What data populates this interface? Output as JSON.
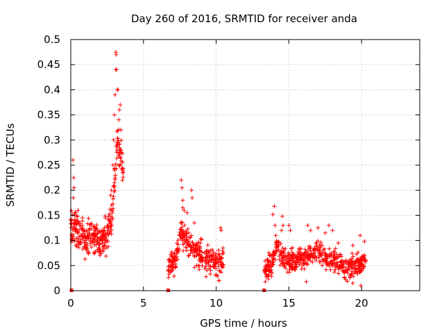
{
  "chart_data": {
    "type": "scatter",
    "title": "Day 260 of 2016, SRMTID for receiver anda",
    "xlabel": "GPS time / hours",
    "ylabel": "SRMTID / TECUs",
    "xlim": [
      0,
      24
    ],
    "ylim": [
      0,
      0.5
    ],
    "grid": true,
    "x_ticks": [
      0,
      5,
      10,
      15,
      20
    ],
    "x_tick_labels": [
      "0",
      "5",
      "10",
      "15",
      "20"
    ],
    "y_ticks": [
      0,
      0.05,
      0.1,
      0.15,
      0.2,
      0.25,
      0.3,
      0.35,
      0.4,
      0.45,
      0.5
    ],
    "y_tick_labels": [
      "0",
      "0.05",
      "0.1",
      "0.15",
      "0.2",
      "0.25",
      "0.3",
      "0.35",
      "0.4",
      "0.45",
      "0.5"
    ],
    "series": [
      {
        "name": "SRMTID",
        "color": "#ff0000",
        "marker": "plus",
        "segments": [
          {
            "start": 0.0,
            "end": 3.6,
            "baseline": [
              [
                0,
                0.13
              ],
              [
                0.5,
                0.12
              ],
              [
                1.0,
                0.1
              ],
              [
                1.5,
                0.11
              ],
              [
                2.0,
                0.1
              ],
              [
                2.5,
                0.11
              ],
              [
                2.8,
                0.14
              ],
              [
                3.0,
                0.22
              ],
              [
                3.2,
                0.3
              ],
              [
                3.4,
                0.28
              ],
              [
                3.6,
                0.24
              ]
            ],
            "spread": 0.03,
            "count": 320
          },
          {
            "start": 6.7,
            "end": 10.5,
            "baseline": [
              [
                6.7,
                0.05
              ],
              [
                7.2,
                0.06
              ],
              [
                7.6,
                0.12
              ],
              [
                8.0,
                0.1
              ],
              [
                8.5,
                0.08
              ],
              [
                9.0,
                0.07
              ],
              [
                9.5,
                0.06
              ],
              [
                10.0,
                0.05
              ],
              [
                10.5,
                0.06
              ]
            ],
            "spread": 0.025,
            "count": 300
          },
          {
            "start": 13.3,
            "end": 20.3,
            "baseline": [
              [
                13.3,
                0.04
              ],
              [
                13.8,
                0.05
              ],
              [
                14.1,
                0.09
              ],
              [
                14.5,
                0.07
              ],
              [
                15.0,
                0.06
              ],
              [
                15.5,
                0.06
              ],
              [
                16.0,
                0.065
              ],
              [
                16.5,
                0.07
              ],
              [
                17.0,
                0.08
              ],
              [
                17.5,
                0.07
              ],
              [
                18.0,
                0.06
              ],
              [
                18.5,
                0.05
              ],
              [
                19.0,
                0.045
              ],
              [
                19.5,
                0.05
              ],
              [
                20.0,
                0.055
              ],
              [
                20.3,
                0.06
              ]
            ],
            "spread": 0.02,
            "count": 520
          }
        ],
        "points": [
          [
            0.15,
            0.26
          ],
          [
            0.2,
            0.225
          ],
          [
            0.22,
            0.205
          ],
          [
            0.18,
            0.185
          ],
          [
            0.3,
            0.155
          ],
          [
            0.5,
            0.16
          ],
          [
            0.8,
            0.145
          ],
          [
            2.75,
            0.19
          ],
          [
            2.8,
            0.2
          ],
          [
            2.9,
            0.25
          ],
          [
            2.95,
            0.3
          ],
          [
            3.0,
            0.35
          ],
          [
            3.05,
            0.39
          ],
          [
            3.1,
            0.44
          ],
          [
            3.1,
            0.475
          ],
          [
            3.12,
            0.47
          ],
          [
            3.15,
            0.44
          ],
          [
            3.2,
            0.4
          ],
          [
            3.25,
            0.4
          ],
          [
            3.3,
            0.34
          ],
          [
            3.35,
            0.36
          ],
          [
            3.4,
            0.37
          ],
          [
            3.45,
            0.32
          ],
          [
            3.3,
            0.25
          ],
          [
            3.45,
            0.28
          ],
          [
            3.55,
            0.22
          ],
          [
            7.6,
            0.22
          ],
          [
            7.65,
            0.205
          ],
          [
            7.7,
            0.18
          ],
          [
            7.7,
            0.165
          ],
          [
            7.8,
            0.16
          ],
          [
            8.0,
            0.155
          ],
          [
            8.3,
            0.2
          ],
          [
            8.35,
            0.185
          ],
          [
            8.5,
            0.135
          ],
          [
            10.3,
            0.125
          ],
          [
            10.35,
            0.12
          ],
          [
            14.0,
            0.168
          ],
          [
            13.9,
            0.152
          ],
          [
            14.05,
            0.13
          ],
          [
            14.1,
            0.11
          ],
          [
            14.15,
            0.095
          ],
          [
            14.5,
            0.12
          ],
          [
            14.55,
            0.148
          ],
          [
            14.6,
            0.13
          ],
          [
            15.0,
            0.13
          ],
          [
            15.1,
            0.12
          ],
          [
            16.3,
            0.13
          ],
          [
            16.5,
            0.12
          ],
          [
            17.0,
            0.125
          ],
          [
            17.5,
            0.115
          ],
          [
            17.75,
            0.13
          ],
          [
            18.0,
            0.12
          ],
          [
            18.4,
            0.095
          ],
          [
            19.4,
            0.09
          ],
          [
            19.9,
            0.11
          ],
          [
            20.2,
            0.098
          ],
          [
            16.2,
            0.018
          ],
          [
            18.9,
            0.022
          ],
          [
            19.4,
            0.015
          ],
          [
            19.95,
            0.01
          ]
        ],
        "zero_markers": [
          0.05,
          6.7,
          13.3
        ]
      }
    ]
  }
}
